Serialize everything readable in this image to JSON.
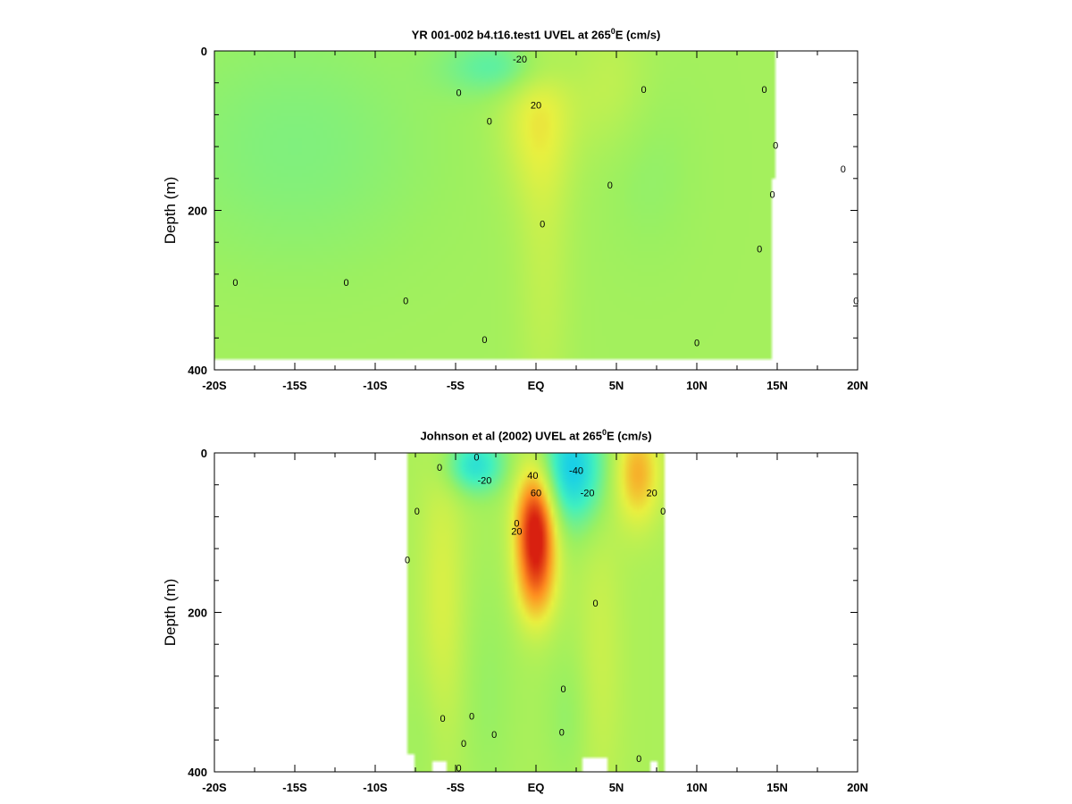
{
  "chart_data": [
    {
      "type": "heatmap",
      "title_prefix": "YR 001-002 b4.t16.test1 UVEL at 265",
      "title_sup": "0",
      "title_suffix": "E (cm/s)",
      "xlabel": "",
      "ylabel": "Depth (m)",
      "xlim": [
        -20,
        20
      ],
      "ylim": [
        400,
        0
      ],
      "x_ticks": [
        -20,
        -15,
        -10,
        -5,
        0,
        5,
        10,
        15,
        20
      ],
      "x_tick_labels": [
        "-20S",
        "-15S",
        "-10S",
        "-5S",
        "EQ",
        "5N",
        "10N",
        "15N",
        "20N"
      ],
      "y_ticks": [
        0,
        200,
        400
      ],
      "y_tick_labels": [
        "0",
        "200",
        "400"
      ],
      "colorscale": [
        [
          -60,
          "#1060ff"
        ],
        [
          -40,
          "#10c8f0"
        ],
        [
          -20,
          "#40f0c0"
        ],
        [
          0,
          "#9cf060"
        ],
        [
          20,
          "#e8f040"
        ],
        [
          40,
          "#ff9020"
        ],
        [
          60,
          "#d82010"
        ]
      ],
      "field": {
        "background": 2,
        "blobs": [
          {
            "x": -15,
            "y": 120,
            "sx": 6,
            "sy": 110,
            "v": -8
          },
          {
            "x": -2,
            "y": 20,
            "sx": 2.5,
            "sy": 25,
            "v": -18
          },
          {
            "x": 0,
            "y": 80,
            "sx": 1.6,
            "sy": 70,
            "v": 16
          },
          {
            "x": 0.5,
            "y": 250,
            "sx": 1.2,
            "sy": 160,
            "v": 8
          },
          {
            "x": 4.5,
            "y": 40,
            "sx": 1.8,
            "sy": 60,
            "v": 8
          },
          {
            "x": 7,
            "y": 150,
            "sx": 2.0,
            "sy": 80,
            "v": -4
          }
        ],
        "mask": [
          {
            "x0": 15,
            "x1": 19,
            "y0": 0,
            "y1": 400
          },
          {
            "x0": 14.7,
            "x1": 15.2,
            "y0": 160,
            "y1": 400
          },
          {
            "x0": 19,
            "x1": 20,
            "y0": 0,
            "y1": 400
          },
          {
            "x0": -20,
            "x1": 20,
            "y0": 385,
            "y1": 400
          }
        ]
      },
      "contour_labels": [
        {
          "x": -1,
          "y": 10,
          "text": "-20"
        },
        {
          "x": 0,
          "y": 68,
          "text": "20"
        },
        {
          "x": -4.8,
          "y": 52,
          "text": "0"
        },
        {
          "x": -2.9,
          "y": 88,
          "text": "0"
        },
        {
          "x": 0.4,
          "y": 217,
          "text": "0"
        },
        {
          "x": 6.7,
          "y": 48,
          "text": "0"
        },
        {
          "x": 4.6,
          "y": 168,
          "text": "0"
        },
        {
          "x": -18.7,
          "y": 290,
          "text": "0"
        },
        {
          "x": -11.8,
          "y": 290,
          "text": "0"
        },
        {
          "x": -8.1,
          "y": 313,
          "text": "0"
        },
        {
          "x": -3.2,
          "y": 362,
          "text": "0"
        },
        {
          "x": 10,
          "y": 366,
          "text": "0"
        },
        {
          "x": 13.9,
          "y": 248,
          "text": "0"
        },
        {
          "x": 14.2,
          "y": 48,
          "text": "0"
        },
        {
          "x": 14.9,
          "y": 118,
          "text": "0"
        },
        {
          "x": 14.7,
          "y": 180,
          "text": "0"
        },
        {
          "x": 19.1,
          "y": 148,
          "text": "0"
        },
        {
          "x": 19.9,
          "y": 313,
          "text": "0"
        }
      ]
    },
    {
      "type": "heatmap",
      "title_prefix": "Johnson et al (2002) UVEL at 265",
      "title_sup": "0",
      "title_suffix": "E (cm/s)",
      "xlabel": "",
      "ylabel": "Depth (m)",
      "xlim": [
        -20,
        20
      ],
      "ylim": [
        400,
        0
      ],
      "x_ticks": [
        -20,
        -15,
        -10,
        -5,
        0,
        5,
        10,
        15,
        20
      ],
      "x_tick_labels": [
        "-20S",
        "-15S",
        "-10S",
        "-5S",
        "EQ",
        "5N",
        "10N",
        "15N",
        "20N"
      ],
      "y_ticks": [
        0,
        200,
        400
      ],
      "y_tick_labels": [
        "0",
        "200",
        "400"
      ],
      "colorscale": [
        [
          -60,
          "#1060ff"
        ],
        [
          -40,
          "#10c8f0"
        ],
        [
          -20,
          "#40f0c0"
        ],
        [
          0,
          "#9cf060"
        ],
        [
          20,
          "#e8f040"
        ],
        [
          40,
          "#ff9020"
        ],
        [
          60,
          "#d82010"
        ]
      ],
      "field": {
        "background": 4,
        "blobs": [
          {
            "x": -3.8,
            "y": 15,
            "sx": 1.3,
            "sy": 25,
            "v": -32
          },
          {
            "x": 2.2,
            "y": 20,
            "sx": 1.5,
            "sy": 50,
            "v": -42
          },
          {
            "x": 0,
            "y": 90,
            "sx": 0.9,
            "sy": 55,
            "v": 62
          },
          {
            "x": 0,
            "y": 170,
            "sx": 0.9,
            "sy": 40,
            "v": 20
          },
          {
            "x": 6.3,
            "y": 25,
            "sx": 1.0,
            "sy": 45,
            "v": 30
          },
          {
            "x": -5.8,
            "y": 180,
            "sx": 1.0,
            "sy": 140,
            "v": 12
          },
          {
            "x": 4,
            "y": 250,
            "sx": 1.0,
            "sy": 150,
            "v": 8
          },
          {
            "x": -3,
            "y": 300,
            "sx": 1.2,
            "sy": 110,
            "v": -5
          },
          {
            "x": 2,
            "y": 330,
            "sx": 1.0,
            "sy": 60,
            "v": -6
          },
          {
            "x": -7,
            "y": 350,
            "sx": 1.0,
            "sy": 60,
            "v": -4
          }
        ],
        "mask": [
          {
            "x0": -20,
            "x1": -8,
            "y0": 0,
            "y1": 400
          },
          {
            "x0": 8,
            "x1": 20,
            "y0": 0,
            "y1": 400
          },
          {
            "x0": -8,
            "x1": -7.6,
            "y0": 380,
            "y1": 400
          },
          {
            "x0": -6.5,
            "x1": -5.5,
            "y0": 385,
            "y1": 400
          },
          {
            "x0": 3,
            "x1": 4.5,
            "y0": 382,
            "y1": 400
          },
          {
            "x0": 7.1,
            "x1": 7.6,
            "y0": 385,
            "y1": 400
          }
        ]
      },
      "contour_labels": [
        {
          "x": -3.7,
          "y": 5,
          "text": "0"
        },
        {
          "x": -3.2,
          "y": 34,
          "text": "-20"
        },
        {
          "x": 2.5,
          "y": 22,
          "text": "-40"
        },
        {
          "x": 3.2,
          "y": 50,
          "text": "-20"
        },
        {
          "x": 0,
          "y": 50,
          "text": "60"
        },
        {
          "x": -0.2,
          "y": 28,
          "text": "40"
        },
        {
          "x": -1.2,
          "y": 98,
          "text": "20"
        },
        {
          "x": -1.2,
          "y": 88,
          "text": "0"
        },
        {
          "x": 7.2,
          "y": 50,
          "text": "20"
        },
        {
          "x": 7.9,
          "y": 73,
          "text": "0"
        },
        {
          "x": -6,
          "y": 18,
          "text": "0"
        },
        {
          "x": -7.4,
          "y": 73,
          "text": "0"
        },
        {
          "x": -8,
          "y": 134,
          "text": "0"
        },
        {
          "x": 3.7,
          "y": 188,
          "text": "0"
        },
        {
          "x": 1.7,
          "y": 296,
          "text": "0"
        },
        {
          "x": -5.8,
          "y": 333,
          "text": "0"
        },
        {
          "x": -4,
          "y": 330,
          "text": "0"
        },
        {
          "x": -2.6,
          "y": 353,
          "text": "0"
        },
        {
          "x": -4.5,
          "y": 364,
          "text": "0"
        },
        {
          "x": 1.6,
          "y": 350,
          "text": "0"
        },
        {
          "x": 6.4,
          "y": 383,
          "text": "0"
        },
        {
          "x": -4.8,
          "y": 395,
          "text": "0"
        }
      ]
    }
  ]
}
